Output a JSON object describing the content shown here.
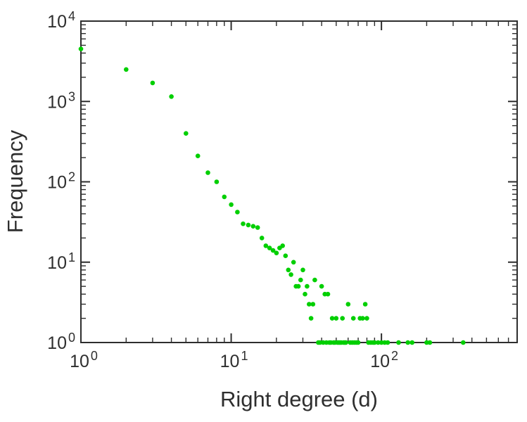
{
  "chart_data": {
    "type": "scatter",
    "title": "",
    "xlabel": "Right degree (d)",
    "ylabel": "Frequency",
    "x_scale": "log",
    "y_scale": "log",
    "xlim": [
      1,
      800
    ],
    "ylim": [
      1,
      10000
    ],
    "grid": false,
    "legend": "none",
    "tick_label_base": "10",
    "x_tick_exponents": [
      0,
      1,
      2
    ],
    "y_tick_exponents": [
      0,
      1,
      2,
      3,
      4
    ],
    "point_color": "#00cf00",
    "frame_color": "#2e2e2e",
    "points": [
      [
        1,
        4500
      ],
      [
        2,
        2500
      ],
      [
        3,
        1700
      ],
      [
        4,
        1150
      ],
      [
        5,
        400
      ],
      [
        6,
        210
      ],
      [
        7,
        130
      ],
      [
        8,
        100
      ],
      [
        9,
        65
      ],
      [
        10,
        52
      ],
      [
        11,
        42
      ],
      [
        12,
        30
      ],
      [
        13,
        29
      ],
      [
        14,
        28
      ],
      [
        15,
        27
      ],
      [
        16,
        20
      ],
      [
        17,
        16
      ],
      [
        18,
        15
      ],
      [
        19,
        14
      ],
      [
        20,
        13
      ],
      [
        21,
        15
      ],
      [
        22,
        16
      ],
      [
        23,
        12
      ],
      [
        24,
        8
      ],
      [
        25,
        7
      ],
      [
        26,
        10
      ],
      [
        27,
        5
      ],
      [
        28,
        5
      ],
      [
        29,
        6
      ],
      [
        30,
        8
      ],
      [
        31,
        4
      ],
      [
        32,
        5
      ],
      [
        33,
        3
      ],
      [
        34,
        2
      ],
      [
        35,
        3
      ],
      [
        36,
        6
      ],
      [
        38,
        1
      ],
      [
        39,
        1
      ],
      [
        40,
        5
      ],
      [
        41,
        1
      ],
      [
        42,
        4
      ],
      [
        43,
        1
      ],
      [
        44,
        4
      ],
      [
        45,
        1
      ],
      [
        46,
        1
      ],
      [
        47,
        2
      ],
      [
        48,
        1
      ],
      [
        49,
        1
      ],
      [
        50,
        2
      ],
      [
        51,
        1
      ],
      [
        52,
        1
      ],
      [
        53,
        1
      ],
      [
        54,
        1
      ],
      [
        55,
        2
      ],
      [
        56,
        1
      ],
      [
        57,
        1
      ],
      [
        58,
        1
      ],
      [
        60,
        3
      ],
      [
        62,
        1
      ],
      [
        64,
        1
      ],
      [
        65,
        2
      ],
      [
        66,
        1
      ],
      [
        68,
        1
      ],
      [
        70,
        1
      ],
      [
        72,
        2
      ],
      [
        75,
        2
      ],
      [
        78,
        3
      ],
      [
        80,
        2
      ],
      [
        82,
        1
      ],
      [
        85,
        1
      ],
      [
        88,
        1
      ],
      [
        90,
        1
      ],
      [
        95,
        1
      ],
      [
        100,
        1
      ],
      [
        105,
        1
      ],
      [
        110,
        1
      ],
      [
        130,
        1
      ],
      [
        150,
        1
      ],
      [
        160,
        1
      ],
      [
        200,
        1
      ],
      [
        210,
        1
      ],
      [
        350,
        1
      ]
    ]
  }
}
